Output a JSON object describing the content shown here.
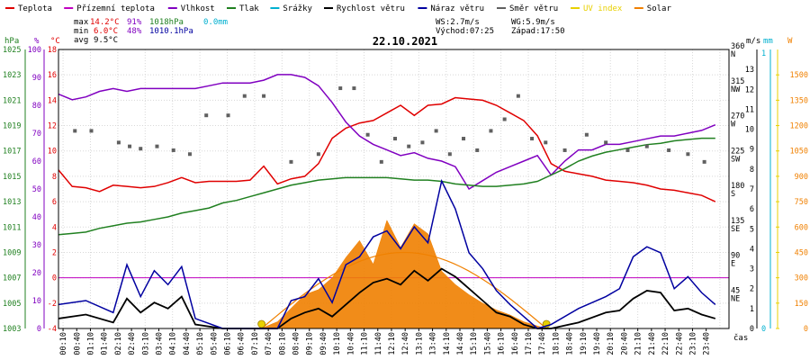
{
  "legend": [
    {
      "label": "Teplota",
      "color": "#e00000"
    },
    {
      "label": "Přízemní teplota",
      "color": "#c000c0"
    },
    {
      "label": "Vlhkost",
      "color": "#8000c0"
    },
    {
      "label": "Tlak",
      "color": "#208020"
    },
    {
      "label": "Srážky",
      "color": "#00b0d0"
    },
    {
      "label": "Rychlost větru",
      "color": "#000000"
    },
    {
      "label": "Náraz větru",
      "color": "#0000a0"
    },
    {
      "label": "Směr větru",
      "color": "#606060"
    },
    {
      "label": "UV index",
      "color": "#e8d000"
    },
    {
      "label": "Solar",
      "color": "#f08000"
    }
  ],
  "stats": {
    "max_label": "max",
    "max_temp": "14.2°C",
    "max_hum": "91%",
    "max_press": "1018hPa",
    "max_rain": "0.0mm",
    "min_label": "min",
    "min_temp": "6.0°C",
    "min_hum": "48%",
    "min_press": "1010.1hPa",
    "avg_label": "avg",
    "avg_temp": "9.5°C",
    "ws": "WS:2.7m/s",
    "wg": "WG:5.9m/s",
    "sunrise": "Východ:07:25",
    "sunset": "Západ:17:50"
  },
  "units": {
    "hpa": "hPa",
    "pct": "%",
    "degc": "°C",
    "ms": "m/s",
    "mm": "mm",
    "w": "W",
    "cas": "čas"
  },
  "colors": {
    "temp": "#e00000",
    "ground": "#c000c0",
    "hum": "#8000c0",
    "press": "#208020",
    "rain": "#00b0d0",
    "wind": "#000000",
    "gust": "#0000a0",
    "dir": "#606060",
    "uv": "#e8d000",
    "solar": "#f08000",
    "zero": "#c000c0",
    "grid": "#d8d8d8"
  },
  "chart_data": {
    "type": "line",
    "title": "22.10.2021",
    "x_ticks": [
      "00:10",
      "00:40",
      "01:10",
      "01:40",
      "02:10",
      "02:40",
      "03:10",
      "03:40",
      "04:10",
      "04:40",
      "05:10",
      "05:40",
      "06:10",
      "06:40",
      "07:10",
      "07:40",
      "08:10",
      "08:40",
      "09:10",
      "09:40",
      "10:10",
      "10:40",
      "11:10",
      "11:40",
      "12:10",
      "12:40",
      "13:10",
      "13:40",
      "14:10",
      "14:40",
      "15:10",
      "15:40",
      "16:10",
      "16:40",
      "17:10",
      "17:40",
      "18:10",
      "18:40",
      "19:10",
      "19:40",
      "20:10",
      "20:40",
      "21:10",
      "21:40",
      "22:10",
      "22:40",
      "23:10",
      "23:40"
    ],
    "axes": {
      "pressure": {
        "unit": "hPa",
        "range": [
          1003,
          1025
        ],
        "ticks": [
          "1003",
          "1005",
          "1007",
          "1009",
          "1011",
          "1013",
          "1015",
          "1017",
          "1019",
          "1021",
          "1023",
          "1025"
        ]
      },
      "humidity": {
        "unit": "%",
        "range": [
          0,
          100
        ],
        "ticks": [
          "0",
          "10",
          "20",
          "30",
          "40",
          "50",
          "60",
          "70",
          "80",
          "90",
          "100"
        ]
      },
      "temperature": {
        "unit": "°C",
        "range": [
          -4,
          18
        ],
        "ticks": [
          "-4",
          "-2",
          "0",
          "2",
          "4",
          "6",
          "8",
          "10",
          "12",
          "14",
          "16",
          "18"
        ]
      },
      "wind_direction": {
        "range": [
          0,
          360
        ],
        "ticks": [
          {
            "deg": "45",
            "dir": "NE"
          },
          {
            "deg": "90",
            "dir": "E"
          },
          {
            "deg": "135",
            "dir": "SE"
          },
          {
            "deg": "180",
            "dir": "S"
          },
          {
            "deg": "225",
            "dir": "SW"
          },
          {
            "deg": "270",
            "dir": "W"
          },
          {
            "deg": "315",
            "dir": "NW"
          },
          {
            "deg": "360",
            "dir": "N"
          }
        ]
      },
      "wind_speed": {
        "unit": "m/s",
        "range": [
          0,
          14
        ],
        "ticks": [
          "0",
          "1",
          "2",
          "3",
          "4",
          "5",
          "6",
          "7",
          "8",
          "9",
          "10",
          "11",
          "12",
          "13"
        ]
      },
      "rain": {
        "unit": "mm",
        "range": [
          0,
          1
        ],
        "ticks": [
          "0",
          "1"
        ]
      },
      "solar": {
        "unit": "W",
        "range": [
          0,
          1650
        ],
        "ticks": [
          "0",
          "150",
          "300",
          "450",
          "600",
          "750",
          "900",
          "1050",
          "1200",
          "1350",
          "1500"
        ]
      }
    },
    "series": [
      {
        "name": "Teplota",
        "axis": "temperature",
        "x": [
          0,
          0.5,
          1,
          1.5,
          2,
          2.5,
          3,
          3.5,
          4,
          4.5,
          5,
          5.5,
          6,
          6.5,
          7,
          7.5,
          8,
          8.5,
          9,
          9.5,
          10,
          10.5,
          11,
          11.5,
          12,
          12.5,
          13,
          13.5,
          14,
          14.5,
          15,
          15.5,
          16,
          16.5,
          17,
          17.5,
          18,
          18.5,
          19,
          19.5,
          20,
          20.5,
          21,
          21.5,
          22,
          22.5,
          23,
          23.5,
          24
        ],
        "values": [
          8.5,
          7.2,
          7.1,
          6.8,
          7.3,
          7.2,
          7.1,
          7.2,
          7.5,
          7.9,
          7.5,
          7.6,
          7.6,
          7.6,
          7.7,
          8.8,
          7.4,
          7.8,
          8.0,
          9.0,
          11.0,
          11.8,
          12.2,
          12.4,
          13.0,
          13.6,
          12.8,
          13.6,
          13.7,
          14.2,
          14.1,
          14.0,
          13.6,
          13.0,
          12.4,
          11.2,
          9.0,
          8.4,
          8.2,
          8.0,
          7.7,
          7.6,
          7.5,
          7.3,
          7.0,
          6.9,
          6.7,
          6.5,
          6.0
        ]
      },
      {
        "name": "Vlhkost",
        "axis": "humidity",
        "x": [
          0,
          0.5,
          1,
          1.5,
          2,
          2.5,
          3,
          3.5,
          4,
          4.5,
          5,
          5.5,
          6,
          6.5,
          7,
          7.5,
          8,
          8.5,
          9,
          9.5,
          10,
          10.5,
          11,
          11.5,
          12,
          12.5,
          13,
          13.5,
          14,
          14.5,
          15,
          15.5,
          16,
          16.5,
          17,
          17.5,
          18,
          18.5,
          19,
          19.5,
          20,
          20.5,
          21,
          21.5,
          22,
          22.5,
          23,
          23.5,
          24
        ],
        "values": [
          84,
          82,
          83,
          85,
          86,
          85,
          86,
          86,
          86,
          86,
          86,
          87,
          88,
          88,
          88,
          89,
          91,
          91,
          90,
          87,
          81,
          74,
          69,
          66,
          64,
          62,
          63,
          61,
          60,
          58,
          50,
          53,
          56,
          58,
          60,
          62,
          55,
          60,
          64,
          64,
          66,
          66,
          67,
          68,
          69,
          69,
          70,
          71,
          73
        ]
      },
      {
        "name": "Tlak",
        "axis": "pressure",
        "x": [
          0,
          0.5,
          1,
          1.5,
          2,
          2.5,
          3,
          3.5,
          4,
          4.5,
          5,
          5.5,
          6,
          6.5,
          7,
          7.5,
          8,
          8.5,
          9,
          9.5,
          10,
          10.5,
          11,
          11.5,
          12,
          12.5,
          13,
          13.5,
          14,
          14.5,
          15,
          15.5,
          16,
          16.5,
          17,
          17.5,
          18,
          18.5,
          19,
          19.5,
          20,
          20.5,
          21,
          21.5,
          22,
          22.5,
          23,
          23.5,
          24
        ],
        "values": [
          1010.4,
          1010.5,
          1010.6,
          1010.9,
          1011.1,
          1011.3,
          1011.4,
          1011.6,
          1011.8,
          1012.1,
          1012.3,
          1012.5,
          1012.9,
          1013.1,
          1013.4,
          1013.7,
          1014.0,
          1014.3,
          1014.5,
          1014.7,
          1014.8,
          1014.9,
          1014.9,
          1014.9,
          1014.9,
          1014.8,
          1014.7,
          1014.7,
          1014.6,
          1014.4,
          1014.3,
          1014.2,
          1014.2,
          1014.3,
          1014.4,
          1014.6,
          1015.1,
          1015.6,
          1016.2,
          1016.6,
          1016.9,
          1017.1,
          1017.3,
          1017.5,
          1017.6,
          1017.8,
          1017.9,
          1018.0,
          1018.0
        ]
      },
      {
        "name": "Rychlost větru",
        "axis": "wind_speed",
        "x": [
          0,
          1,
          2,
          2.5,
          3,
          3.5,
          4,
          4.5,
          5,
          6,
          7,
          7.5,
          8,
          8.5,
          9,
          9.5,
          10,
          10.5,
          11,
          11.5,
          12,
          12.5,
          13,
          13.5,
          14,
          14.5,
          15,
          15.5,
          16,
          16.5,
          17,
          17.5,
          18,
          19,
          20,
          20.5,
          21,
          21.5,
          22,
          22.5,
          23,
          23.5,
          24
        ],
        "values": [
          0.5,
          0.7,
          0.3,
          1.5,
          0.8,
          1.3,
          1.0,
          1.6,
          0.2,
          0,
          0,
          0,
          0,
          0.5,
          0.8,
          1.0,
          0.6,
          1.2,
          1.8,
          2.3,
          2.5,
          2.2,
          2.9,
          2.4,
          3.0,
          2.6,
          2.0,
          1.4,
          0.8,
          0.6,
          0.2,
          0,
          0,
          0.3,
          0.8,
          0.9,
          1.5,
          1.9,
          1.8,
          0.9,
          1.0,
          0.7,
          0.5
        ]
      },
      {
        "name": "Náraz větru",
        "axis": "wind_speed",
        "x": [
          0,
          1,
          2,
          2.5,
          3,
          3.5,
          4,
          4.5,
          5,
          6,
          7,
          7.5,
          8,
          8.5,
          9,
          9.5,
          10,
          10.5,
          11,
          11.5,
          12,
          12.5,
          13,
          13.5,
          14,
          14.5,
          15,
          15.5,
          16,
          16.5,
          17,
          17.5,
          18,
          19,
          20,
          20.5,
          21,
          21.5,
          22,
          22.5,
          23,
          23.5,
          24
        ],
        "values": [
          1.2,
          1.4,
          0.8,
          3.2,
          1.6,
          2.9,
          2.2,
          3.1,
          0.5,
          0,
          0,
          0,
          0,
          1.4,
          1.6,
          2.5,
          1.3,
          3.2,
          3.6,
          4.6,
          4.9,
          4.0,
          5.1,
          4.3,
          7.4,
          6.0,
          3.8,
          3.0,
          1.9,
          1.2,
          0.6,
          0,
          0.2,
          1.0,
          1.6,
          2.0,
          3.6,
          4.1,
          3.8,
          2.0,
          2.6,
          1.8,
          1.2
        ]
      },
      {
        "name": "Směr větru",
        "axis": "wind_direction",
        "x": [
          0.6,
          1.2,
          2.2,
          2.6,
          3.0,
          3.6,
          4.2,
          4.8,
          5.4,
          6.2,
          6.8,
          7.5,
          8.5,
          9.5,
          10.3,
          10.8,
          11.3,
          11.8,
          12.3,
          12.8,
          13.3,
          13.8,
          14.3,
          14.8,
          15.3,
          15.8,
          16.3,
          16.8,
          17.3,
          17.8,
          18.5,
          19.3,
          20.0,
          20.8,
          21.5,
          22.3,
          23.0,
          23.6
        ],
        "values": [
          255,
          255,
          240,
          235,
          232,
          235,
          230,
          225,
          275,
          275,
          300,
          300,
          215,
          225,
          310,
          310,
          250,
          215,
          245,
          235,
          240,
          255,
          225,
          245,
          230,
          255,
          270,
          300,
          245,
          240,
          230,
          250,
          240,
          230,
          235,
          230,
          225,
          215
        ]
      },
      {
        "name": "Solar",
        "axis": "solar",
        "x": [
          7.4,
          8.0,
          8.5,
          9.0,
          9.5,
          10.0,
          10.5,
          11.0,
          11.5,
          12.0,
          12.5,
          13.0,
          13.5,
          14.0,
          14.5,
          15.0,
          15.5,
          16.0,
          16.5,
          17.0,
          17.5,
          17.8
        ],
        "values": [
          0,
          40,
          120,
          200,
          230,
          300,
          420,
          520,
          380,
          640,
          480,
          620,
          560,
          340,
          260,
          200,
          150,
          110,
          80,
          40,
          15,
          0
        ]
      }
    ],
    "uv_index": {
      "axis": "solar",
      "x": [
        7.42,
        17.83
      ],
      "values": [
        0,
        0
      ]
    },
    "srazky": {
      "axis": "rain",
      "total": "0.0mm"
    }
  }
}
